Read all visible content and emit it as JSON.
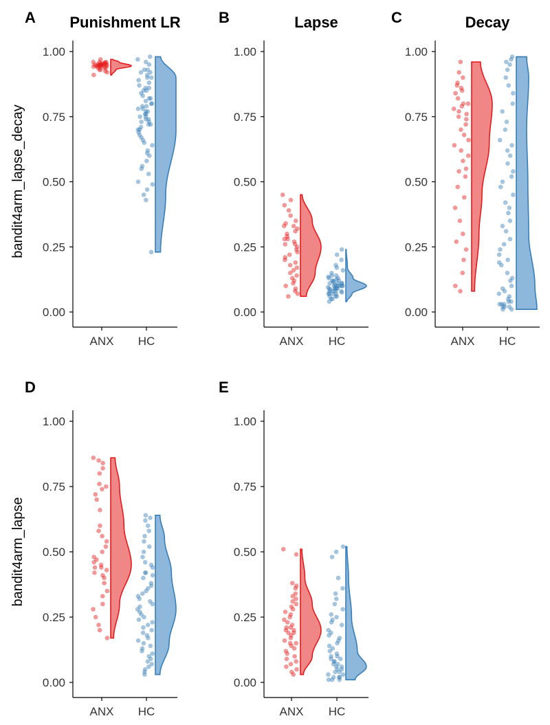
{
  "y_axis_labels": [
    "bandit4arm_lapse_decay",
    "bandit4arm_lapse"
  ],
  "colors": {
    "anx_point": "#e41a1c",
    "anx_fill": "#f08080",
    "hc_point": "#377eb8",
    "hc_fill": "#87b3d9",
    "axis": "#000000",
    "tick_text": "#333333"
  },
  "chart_data": [
    {
      "type": "scatter",
      "panel_letter": "A",
      "title": "Punishment LR",
      "ylabel": "bandit4arm_lapse_decay",
      "ylim": [
        0,
        1
      ],
      "yticks": [
        "0.00",
        "0.25",
        "0.50",
        "0.75",
        "1.00"
      ],
      "categories": [
        "ANX",
        "HC"
      ],
      "series": [
        {
          "name": "ANX",
          "min": 0.91,
          "max": 0.97,
          "points": [
            0.97,
            0.96,
            0.96,
            0.955,
            0.955,
            0.95,
            0.95,
            0.95,
            0.95,
            0.948,
            0.946,
            0.945,
            0.944,
            0.943,
            0.94,
            0.94,
            0.938,
            0.935,
            0.93,
            0.93,
            0.925,
            0.92,
            0.91,
            0.96,
            0.952,
            0.947,
            0.942,
            0.958,
            0.949,
            0.944,
            0.951,
            0.953
          ],
          "density": [
            [
              0.91,
              0.05
            ],
            [
              0.93,
              0.25
            ],
            [
              0.945,
              1.0
            ],
            [
              0.96,
              0.4
            ],
            [
              0.97,
              0.1
            ]
          ]
        },
        {
          "name": "HC",
          "min": 0.23,
          "max": 0.98,
          "points": [
            0.98,
            0.97,
            0.96,
            0.95,
            0.93,
            0.93,
            0.92,
            0.92,
            0.91,
            0.9,
            0.9,
            0.89,
            0.88,
            0.87,
            0.86,
            0.86,
            0.85,
            0.85,
            0.84,
            0.83,
            0.82,
            0.82,
            0.81,
            0.8,
            0.8,
            0.79,
            0.79,
            0.78,
            0.78,
            0.77,
            0.77,
            0.76,
            0.76,
            0.75,
            0.75,
            0.74,
            0.74,
            0.73,
            0.73,
            0.72,
            0.72,
            0.71,
            0.7,
            0.7,
            0.69,
            0.68,
            0.67,
            0.66,
            0.65,
            0.64,
            0.62,
            0.61,
            0.6,
            0.58,
            0.56,
            0.55,
            0.53,
            0.5,
            0.49,
            0.47,
            0.45,
            0.43,
            0.23
          ],
          "density": [
            [
              0.23,
              0.005
            ],
            [
              0.45,
              0.01
            ],
            [
              0.7,
              0.02
            ],
            [
              0.9,
              0.02
            ],
            [
              0.98,
              0.005
            ]
          ]
        }
      ]
    },
    {
      "type": "scatter",
      "panel_letter": "B",
      "title": "Lapse",
      "ylabel": "",
      "ylim": [
        0,
        1
      ],
      "yticks": [
        "0.00",
        "0.25",
        "0.50",
        "0.75",
        "1.00"
      ],
      "categories": [
        "ANX",
        "HC"
      ],
      "series": [
        {
          "name": "ANX",
          "min": 0.06,
          "max": 0.45,
          "points": [
            0.45,
            0.43,
            0.41,
            0.39,
            0.37,
            0.35,
            0.34,
            0.33,
            0.33,
            0.32,
            0.31,
            0.3,
            0.29,
            0.28,
            0.28,
            0.27,
            0.26,
            0.26,
            0.25,
            0.24,
            0.23,
            0.22,
            0.21,
            0.2,
            0.19,
            0.18,
            0.17,
            0.16,
            0.15,
            0.14,
            0.13,
            0.12,
            0.11,
            0.1,
            0.09,
            0.08,
            0.07,
            0.06
          ],
          "density": [
            [
              0.06,
              0.1
            ],
            [
              0.15,
              0.25
            ],
            [
              0.25,
              0.35
            ],
            [
              0.35,
              0.2
            ],
            [
              0.45,
              0.03
            ]
          ]
        },
        {
          "name": "HC",
          "min": 0.04,
          "max": 0.24,
          "points": [
            0.24,
            0.22,
            0.2,
            0.18,
            0.17,
            0.16,
            0.15,
            0.14,
            0.14,
            0.13,
            0.13,
            0.12,
            0.12,
            0.12,
            0.11,
            0.11,
            0.11,
            0.11,
            0.1,
            0.1,
            0.1,
            0.1,
            0.1,
            0.1,
            0.09,
            0.09,
            0.09,
            0.09,
            0.09,
            0.08,
            0.08,
            0.08,
            0.08,
            0.07,
            0.07,
            0.07,
            0.07,
            0.06,
            0.06,
            0.06,
            0.05,
            0.05,
            0.04,
            0.105,
            0.095,
            0.115,
            0.085,
            0.125,
            0.075,
            0.135
          ],
          "density": [
            [
              0.04,
              0.05
            ],
            [
              0.07,
              0.3
            ],
            [
              0.1,
              1.0
            ],
            [
              0.13,
              0.35
            ],
            [
              0.17,
              0.08
            ],
            [
              0.24,
              0.02
            ]
          ]
        }
      ]
    },
    {
      "type": "scatter",
      "panel_letter": "C",
      "title": "Decay",
      "ylabel": "",
      "ylim": [
        0,
        1
      ],
      "yticks": [
        "0.00",
        "0.25",
        "0.50",
        "0.75",
        "1.00"
      ],
      "categories": [
        "ANX",
        "HC"
      ],
      "series": [
        {
          "name": "ANX",
          "min": 0.08,
          "max": 0.96,
          "points": [
            0.96,
            0.92,
            0.9,
            0.88,
            0.87,
            0.86,
            0.85,
            0.84,
            0.82,
            0.8,
            0.8,
            0.79,
            0.78,
            0.77,
            0.76,
            0.75,
            0.74,
            0.72,
            0.7,
            0.68,
            0.66,
            0.64,
            0.62,
            0.6,
            0.58,
            0.55,
            0.54,
            0.52,
            0.48,
            0.44,
            0.4,
            0.35,
            0.3,
            0.27,
            0.24,
            0.2,
            0.15,
            0.1,
            0.08
          ],
          "density": [
            [
              0.08,
              0.1
            ],
            [
              0.3,
              0.25
            ],
            [
              0.45,
              0.35
            ],
            [
              0.65,
              0.6
            ],
            [
              0.8,
              0.7
            ],
            [
              0.96,
              0.3
            ]
          ]
        },
        {
          "name": "HC",
          "min": 0.01,
          "max": 0.98,
          "points": [
            0.98,
            0.97,
            0.96,
            0.95,
            0.93,
            0.9,
            0.87,
            0.84,
            0.8,
            0.77,
            0.73,
            0.7,
            0.66,
            0.64,
            0.62,
            0.6,
            0.57,
            0.54,
            0.52,
            0.5,
            0.48,
            0.45,
            0.42,
            0.4,
            0.38,
            0.35,
            0.33,
            0.31,
            0.28,
            0.26,
            0.24,
            0.22,
            0.2,
            0.19,
            0.18,
            0.15,
            0.13,
            0.12,
            0.1,
            0.09,
            0.08,
            0.07,
            0.06,
            0.05,
            0.04,
            0.04,
            0.03,
            0.03,
            0.03,
            0.02,
            0.02,
            0.02,
            0.01,
            0.01
          ],
          "density": [
            [
              0.01,
              0.5
            ],
            [
              0.1,
              0.45
            ],
            [
              0.3,
              0.3
            ],
            [
              0.5,
              0.28
            ],
            [
              0.7,
              0.25
            ],
            [
              0.9,
              0.3
            ],
            [
              0.98,
              0.25
            ]
          ]
        }
      ]
    },
    {
      "type": "scatter",
      "panel_letter": "D",
      "title": "",
      "ylabel": "bandit4arm_lapse",
      "ylim": [
        0,
        1
      ],
      "yticks": [
        "0.00",
        "0.25",
        "0.50",
        "0.75",
        "1.00"
      ],
      "categories": [
        "ANX",
        "HC"
      ],
      "series": [
        {
          "name": "ANX",
          "min": 0.17,
          "max": 0.86,
          "points": [
            0.86,
            0.85,
            0.84,
            0.82,
            0.8,
            0.76,
            0.75,
            0.74,
            0.72,
            0.7,
            0.66,
            0.6,
            0.58,
            0.56,
            0.54,
            0.52,
            0.5,
            0.48,
            0.47,
            0.46,
            0.45,
            0.44,
            0.44,
            0.43,
            0.42,
            0.41,
            0.4,
            0.38,
            0.35,
            0.33,
            0.3,
            0.28,
            0.25,
            0.22,
            0.2,
            0.17
          ],
          "density": [
            [
              0.17,
              0.1
            ],
            [
              0.3,
              0.3
            ],
            [
              0.45,
              0.7
            ],
            [
              0.6,
              0.45
            ],
            [
              0.75,
              0.3
            ],
            [
              0.86,
              0.15
            ]
          ]
        },
        {
          "name": "HC",
          "min": 0.03,
          "max": 0.64,
          "points": [
            0.64,
            0.63,
            0.62,
            0.6,
            0.58,
            0.56,
            0.54,
            0.52,
            0.5,
            0.48,
            0.46,
            0.45,
            0.44,
            0.42,
            0.42,
            0.41,
            0.4,
            0.38,
            0.37,
            0.36,
            0.35,
            0.34,
            0.33,
            0.32,
            0.31,
            0.3,
            0.29,
            0.28,
            0.27,
            0.26,
            0.25,
            0.24,
            0.23,
            0.22,
            0.21,
            0.2,
            0.19,
            0.18,
            0.17,
            0.16,
            0.15,
            0.14,
            0.13,
            0.12,
            0.11,
            0.1,
            0.09,
            0.08,
            0.07,
            0.06,
            0.05,
            0.04,
            0.03
          ],
          "density": [
            [
              0.03,
              0.1
            ],
            [
              0.15,
              0.3
            ],
            [
              0.28,
              0.45
            ],
            [
              0.42,
              0.35
            ],
            [
              0.55,
              0.2
            ],
            [
              0.64,
              0.1
            ]
          ]
        }
      ]
    },
    {
      "type": "scatter",
      "panel_letter": "E",
      "title": "",
      "ylabel": "",
      "ylim": [
        0,
        1
      ],
      "yticks": [
        "0.00",
        "0.25",
        "0.50",
        "0.75",
        "1.00"
      ],
      "categories": [
        "ANX",
        "HC"
      ],
      "series": [
        {
          "name": "ANX",
          "min": 0.03,
          "max": 0.51,
          "points": [
            0.51,
            0.49,
            0.38,
            0.37,
            0.36,
            0.34,
            0.33,
            0.32,
            0.31,
            0.3,
            0.29,
            0.28,
            0.27,
            0.26,
            0.25,
            0.24,
            0.23,
            0.22,
            0.21,
            0.21,
            0.2,
            0.2,
            0.19,
            0.19,
            0.18,
            0.17,
            0.16,
            0.15,
            0.15,
            0.14,
            0.13,
            0.12,
            0.11,
            0.1,
            0.09,
            0.08,
            0.07,
            0.06,
            0.05,
            0.04,
            0.03
          ],
          "density": [
            [
              0.03,
              0.1
            ],
            [
              0.1,
              0.4
            ],
            [
              0.2,
              0.7
            ],
            [
              0.3,
              0.4
            ],
            [
              0.4,
              0.15
            ],
            [
              0.51,
              0.05
            ]
          ]
        },
        {
          "name": "HC",
          "min": 0.01,
          "max": 0.52,
          "points": [
            0.52,
            0.5,
            0.48,
            0.4,
            0.36,
            0.34,
            0.32,
            0.3,
            0.28,
            0.26,
            0.25,
            0.24,
            0.23,
            0.22,
            0.2,
            0.19,
            0.18,
            0.17,
            0.16,
            0.15,
            0.14,
            0.13,
            0.12,
            0.11,
            0.1,
            0.1,
            0.09,
            0.09,
            0.08,
            0.08,
            0.07,
            0.07,
            0.06,
            0.06,
            0.05,
            0.05,
            0.04,
            0.04,
            0.03,
            0.03,
            0.02,
            0.02,
            0.02,
            0.01,
            0.01,
            0.01
          ],
          "density": [
            [
              0.01,
              0.4
            ],
            [
              0.06,
              0.9
            ],
            [
              0.12,
              0.5
            ],
            [
              0.25,
              0.25
            ],
            [
              0.4,
              0.12
            ],
            [
              0.52,
              0.05
            ]
          ]
        }
      ]
    }
  ]
}
